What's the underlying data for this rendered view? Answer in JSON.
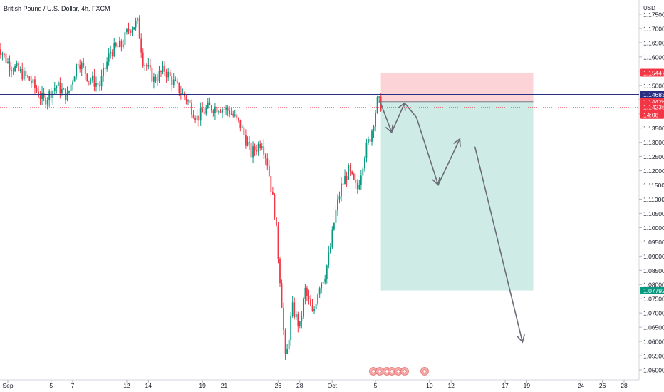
{
  "header": {
    "title": "British Pound / U.S. Dollar, 4h, FXCM",
    "currency": "USD"
  },
  "chart_data": {
    "type": "candlestick",
    "title": "British Pound / U.S. Dollar, 4h, FXCM",
    "symbol": "GBPUSD",
    "interval": "4h",
    "source": "FXCM",
    "y_axis": {
      "ylim": [
        1.0465,
        1.1795
      ],
      "ticks": [
        "1.17500",
        "1.17000",
        "1.16500",
        "1.16000",
        "1.15500",
        "1.15000",
        "1.14500",
        "1.14000",
        "1.13500",
        "1.13000",
        "1.12500",
        "1.12000",
        "1.11500",
        "1.11000",
        "1.10500",
        "1.10000",
        "1.09500",
        "1.09000",
        "1.08500",
        "1.08000",
        "1.07500",
        "1.07000",
        "1.06500",
        "1.06000",
        "1.05500",
        "1.05000"
      ]
    },
    "x_axis": {
      "labels": [
        "Sep",
        "5",
        "7",
        "12",
        "14",
        "19",
        "21",
        "26",
        "28",
        "Oct",
        "5",
        "10",
        "12",
        "17",
        "19",
        "24",
        "26",
        "28"
      ],
      "label_days": [
        1,
        5,
        7,
        12,
        14,
        19,
        21,
        26,
        28,
        31,
        35,
        40,
        42,
        47,
        49,
        54,
        56,
        58
      ]
    },
    "price_tags": [
      {
        "price": "1.15447",
        "color": "#f23645",
        "kind": "stop-loss"
      },
      {
        "price": "1.14683",
        "color": "#2a2e80",
        "kind": "horizontal-line"
      },
      {
        "price": "1.14426",
        "color": "#f23645",
        "kind": "entry"
      },
      {
        "price": "1.14236",
        "color": "#f23645",
        "kind": "last-price",
        "countdown": "14:06"
      },
      {
        "price": "1.07792",
        "color": "#089981",
        "kind": "take-profit"
      }
    ],
    "position": {
      "direction": "short",
      "entry": 1.14426,
      "stop": 1.15447,
      "target": 1.07792,
      "start_day": 35.5,
      "end_day": 49.6
    },
    "horizontal_line": 1.14683,
    "projection_path": [
      {
        "day": 35.4,
        "price": 1.1446
      },
      {
        "day": 36.5,
        "price": 1.1335
      },
      {
        "day": 37.7,
        "price": 1.1438
      },
      {
        "day": 38.8,
        "price": 1.1387
      },
      {
        "day": 40.8,
        "price": 1.115
      },
      {
        "day": 42.8,
        "price": 1.1312
      },
      {
        "day": 44.2,
        "price": 1.1285
      },
      {
        "day": 48.6,
        "price": 1.0598
      }
    ],
    "candle_anchors": [
      {
        "day": 0.0,
        "price": 1.165
      },
      {
        "day": 1.0,
        "price": 1.158
      },
      {
        "day": 3.0,
        "price": 1.152
      },
      {
        "day": 4.3,
        "price": 1.1445
      },
      {
        "day": 5.5,
        "price": 1.15
      },
      {
        "day": 6.5,
        "price": 1.146
      },
      {
        "day": 7.5,
        "price": 1.159
      },
      {
        "day": 8.5,
        "price": 1.1525
      },
      {
        "day": 9.5,
        "price": 1.15
      },
      {
        "day": 10.5,
        "price": 1.162
      },
      {
        "day": 11.5,
        "price": 1.164
      },
      {
        "day": 12.2,
        "price": 1.17
      },
      {
        "day": 13.0,
        "price": 1.172
      },
      {
        "day": 13.5,
        "price": 1.159
      },
      {
        "day": 14.5,
        "price": 1.152
      },
      {
        "day": 15.5,
        "price": 1.1555
      },
      {
        "day": 16.5,
        "price": 1.15
      },
      {
        "day": 17.5,
        "price": 1.1455
      },
      {
        "day": 18.5,
        "price": 1.1385
      },
      {
        "day": 19.5,
        "price": 1.142
      },
      {
        "day": 20.5,
        "price": 1.1425
      },
      {
        "day": 21.5,
        "price": 1.141
      },
      {
        "day": 22.5,
        "price": 1.136
      },
      {
        "day": 23.5,
        "price": 1.126
      },
      {
        "day": 24.5,
        "price": 1.1305
      },
      {
        "day": 25.0,
        "price": 1.123
      },
      {
        "day": 25.7,
        "price": 1.105
      },
      {
        "day": 26.3,
        "price": 1.076
      },
      {
        "day": 26.7,
        "price": 1.052
      },
      {
        "day": 27.3,
        "price": 1.072
      },
      {
        "day": 28.0,
        "price": 1.065
      },
      {
        "day": 28.5,
        "price": 1.078
      },
      {
        "day": 29.2,
        "price": 1.069
      },
      {
        "day": 29.8,
        "price": 1.08
      },
      {
        "day": 30.3,
        "price": 1.083
      },
      {
        "day": 30.8,
        "price": 1.092
      },
      {
        "day": 31.3,
        "price": 1.105
      },
      {
        "day": 31.8,
        "price": 1.114
      },
      {
        "day": 32.5,
        "price": 1.12
      },
      {
        "day": 33.3,
        "price": 1.113
      },
      {
        "day": 34.0,
        "price": 1.126
      },
      {
        "day": 34.6,
        "price": 1.133
      },
      {
        "day": 35.2,
        "price": 1.1448
      },
      {
        "day": 35.6,
        "price": 1.1424
      }
    ]
  }
}
